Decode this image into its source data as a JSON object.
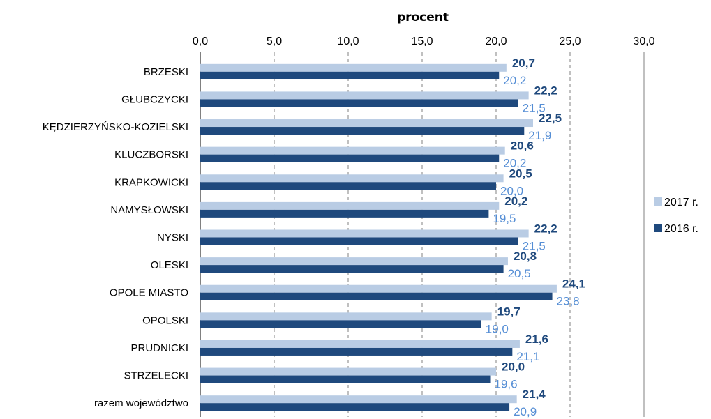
{
  "chart_data": {
    "type": "bar",
    "orientation": "horizontal",
    "title": "procent",
    "xlim": [
      0,
      30
    ],
    "x_ticks": [
      "0,0",
      "5,0",
      "10,0",
      "15,0",
      "20,0",
      "25,0",
      "30,0"
    ],
    "grid": true,
    "legend_position": "right",
    "categories": [
      "BRZESKI",
      "GŁUBCZYCKI",
      "KĘDZIERZYŃSKO-KOZIELSKI",
      "KLUCZBORSKI",
      "KRAPKOWICKI",
      "NAMYSŁOWSKI",
      "NYSKI",
      "OLESKI",
      "OPOLE MIASTO",
      "OPOLSKI",
      "PRUDNICKI",
      "STRZELECKI",
      "razem województwo"
    ],
    "series": [
      {
        "name": "2017 r.",
        "color": "#b9cce4",
        "label_color": "#1f497d",
        "values": [
          20.7,
          22.2,
          22.5,
          20.6,
          20.5,
          20.2,
          22.2,
          20.8,
          24.1,
          19.7,
          21.6,
          20.0,
          21.4
        ],
        "labels": [
          "20,7",
          "22,2",
          "22,5",
          "20,6",
          "20,5",
          "20,2",
          "22,2",
          "20,8",
          "24,1",
          "19,7",
          "21,6",
          "20,0",
          "21,4"
        ]
      },
      {
        "name": "2016 r.",
        "color": "#1f497d",
        "label_color": "#558ed5",
        "values": [
          20.2,
          21.5,
          21.9,
          20.2,
          20.0,
          19.5,
          21.5,
          20.5,
          23.8,
          19.0,
          21.1,
          19.6,
          20.9
        ],
        "labels": [
          "20,2",
          "21,5",
          "21,9",
          "20,2",
          "20,0",
          "19,5",
          "21,5",
          "20,5",
          "23,8",
          "19,0",
          "21,1",
          "19,6",
          "20,9"
        ]
      }
    ]
  }
}
